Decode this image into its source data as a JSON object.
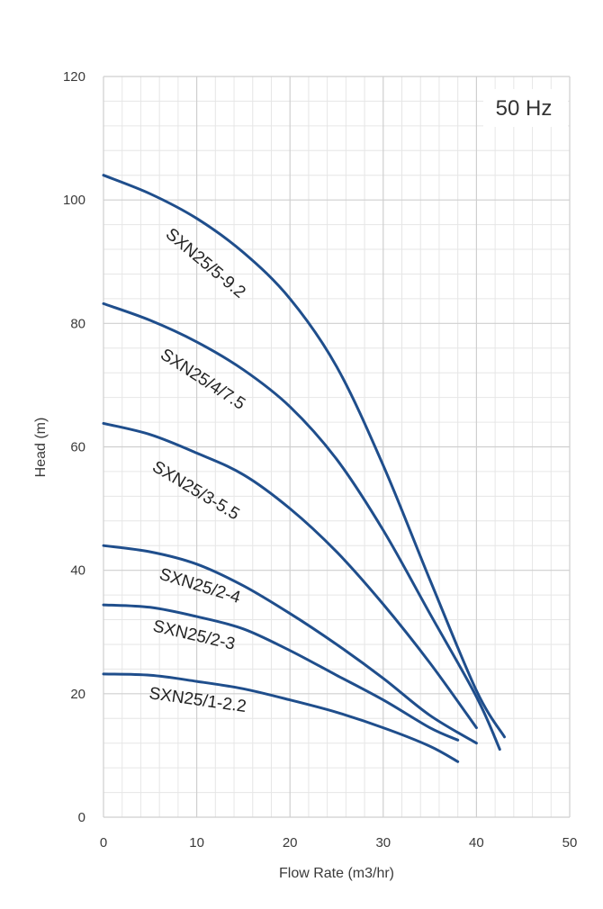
{
  "chart_data": {
    "type": "line",
    "title": "",
    "annotation": "50 Hz",
    "xlabel": "Flow Rate (m3/hr)",
    "ylabel": "Head (m)",
    "xlim": [
      0,
      50
    ],
    "ylim": [
      0,
      120
    ],
    "x_ticks": [
      0,
      10,
      20,
      30,
      40,
      50
    ],
    "y_ticks": [
      0,
      20,
      40,
      60,
      80,
      100,
      120
    ],
    "x_minor_step": 2,
    "y_minor_step": 4,
    "grid": true,
    "legend": "none",
    "line_color": "#1f4e8c",
    "series": [
      {
        "name": "SXN25/5-9.2",
        "points": [
          [
            0,
            104
          ],
          [
            5,
            101
          ],
          [
            10,
            97
          ],
          [
            15,
            91.5
          ],
          [
            20,
            84
          ],
          [
            25,
            73
          ],
          [
            30,
            57
          ],
          [
            35,
            38.5
          ],
          [
            40,
            20.5
          ],
          [
            43,
            13
          ]
        ]
      },
      {
        "name": "SXN25/4/7.5",
        "points": [
          [
            0,
            83.2
          ],
          [
            5,
            80.5
          ],
          [
            10,
            77
          ],
          [
            15,
            72.5
          ],
          [
            20,
            66.5
          ],
          [
            25,
            58
          ],
          [
            30,
            46.5
          ],
          [
            35,
            33
          ],
          [
            40,
            19.5
          ],
          [
            42.5,
            11
          ]
        ]
      },
      {
        "name": "SXN25/3-5.5",
        "points": [
          [
            0,
            63.8
          ],
          [
            5,
            62
          ],
          [
            10,
            59
          ],
          [
            15,
            55.5
          ],
          [
            20,
            50
          ],
          [
            25,
            43
          ],
          [
            30,
            34.5
          ],
          [
            35,
            25
          ],
          [
            40,
            14.5
          ]
        ]
      },
      {
        "name": "SXN25/2-4",
        "points": [
          [
            0,
            44
          ],
          [
            5,
            43
          ],
          [
            10,
            41
          ],
          [
            15,
            37.5
          ],
          [
            20,
            33
          ],
          [
            25,
            28
          ],
          [
            30,
            22.5
          ],
          [
            35,
            16.5
          ],
          [
            40,
            12
          ]
        ]
      },
      {
        "name": "SXN25/2-3",
        "points": [
          [
            0,
            34.4
          ],
          [
            5,
            34
          ],
          [
            10,
            32.5
          ],
          [
            15,
            30.5
          ],
          [
            20,
            27
          ],
          [
            25,
            23
          ],
          [
            30,
            19
          ],
          [
            35,
            14.5
          ],
          [
            38,
            12.5
          ]
        ]
      },
      {
        "name": "SXN25/1-2.2",
        "points": [
          [
            0,
            23.2
          ],
          [
            5,
            23
          ],
          [
            10,
            22
          ],
          [
            15,
            20.8
          ],
          [
            20,
            19
          ],
          [
            25,
            17
          ],
          [
            30,
            14.5
          ],
          [
            35,
            11.5
          ],
          [
            38,
            9
          ]
        ]
      }
    ]
  }
}
